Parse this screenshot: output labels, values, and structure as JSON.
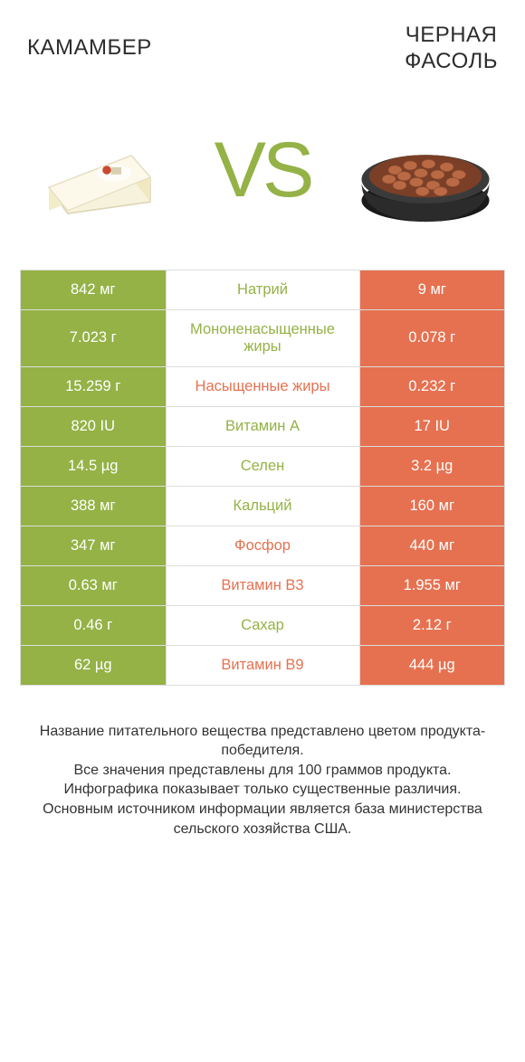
{
  "colors": {
    "green": "#94b246",
    "orange": "#e67150",
    "text": "#2c2c2c"
  },
  "header": {
    "left": "КАМАМБЕР",
    "right": "ЧЕРНАЯ\nФАСОЛЬ"
  },
  "vs": "VS",
  "rows": [
    {
      "left": "842 мг",
      "nutrient": "Натрий",
      "right": "9 мг",
      "winner": "left"
    },
    {
      "left": "7.023 г",
      "nutrient": "Мононенасыщенные жиры",
      "right": "0.078 г",
      "winner": "left"
    },
    {
      "left": "15.259 г",
      "nutrient": "Насыщенные жиры",
      "right": "0.232 г",
      "winner": "right"
    },
    {
      "left": "820 IU",
      "nutrient": "Витамин A",
      "right": "17 IU",
      "winner": "left"
    },
    {
      "left": "14.5 µg",
      "nutrient": "Селен",
      "right": "3.2 µg",
      "winner": "left"
    },
    {
      "left": "388 мг",
      "nutrient": "Кальций",
      "right": "160 мг",
      "winner": "left"
    },
    {
      "left": "347 мг",
      "nutrient": "Фосфор",
      "right": "440 мг",
      "winner": "right"
    },
    {
      "left": "0.63 мг",
      "nutrient": "Витамин B3",
      "right": "1.955 мг",
      "winner": "right"
    },
    {
      "left": "0.46 г",
      "nutrient": "Сахар",
      "right": "2.12 г",
      "winner": "left"
    },
    {
      "left": "62 µg",
      "nutrient": "Витамин B9",
      "right": "444 µg",
      "winner": "right"
    }
  ],
  "footer": {
    "line1": "Название питательного вещества представлено цветом продукта-победителя.",
    "line2": "Все значения представлены для 100 граммов продукта.",
    "line3": "Инфографика показывает только существенные различия.",
    "line4": "Основным источником информации является база министерства сельского хозяйства США."
  }
}
